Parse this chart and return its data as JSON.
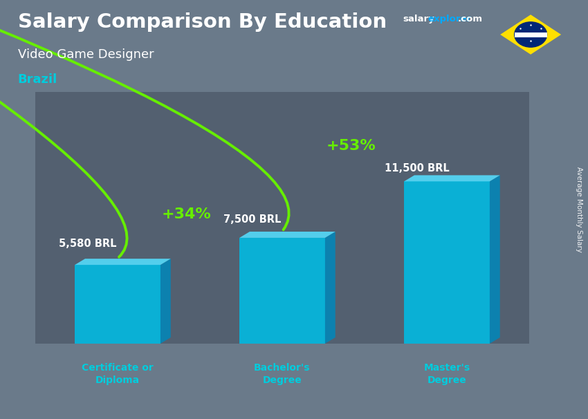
{
  "title": "Salary Comparison By Education",
  "subtitle": "Video Game Designer",
  "country": "Brazil",
  "ylabel": "Average Monthly Salary",
  "categories": [
    "Certificate or\nDiploma",
    "Bachelor's\nDegree",
    "Master's\nDegree"
  ],
  "values": [
    5580,
    7500,
    11500
  ],
  "value_labels": [
    "5,580 BRL",
    "7,500 BRL",
    "11,500 BRL"
  ],
  "pct_labels": [
    "+34%",
    "+53%"
  ],
  "bar_face_color": "#00bce4",
  "bar_top_color": "#55d8f8",
  "bar_side_color": "#0088bb",
  "arrow_color": "#66ee00",
  "title_color": "#ffffff",
  "subtitle_color": "#ffffff",
  "country_color": "#00ccdd",
  "value_label_color": "#ffffff",
  "pct_label_color": "#66ee00",
  "cat_label_color": "#00ccdd",
  "bg_color": "#6a7a8a",
  "site_salary_color": "#ffffff",
  "site_explorer_color": "#00aaff",
  "ylabel_color": "#ffffff",
  "flag_green": "#009c3b",
  "flag_yellow": "#FFDF00",
  "flag_blue": "#002776"
}
